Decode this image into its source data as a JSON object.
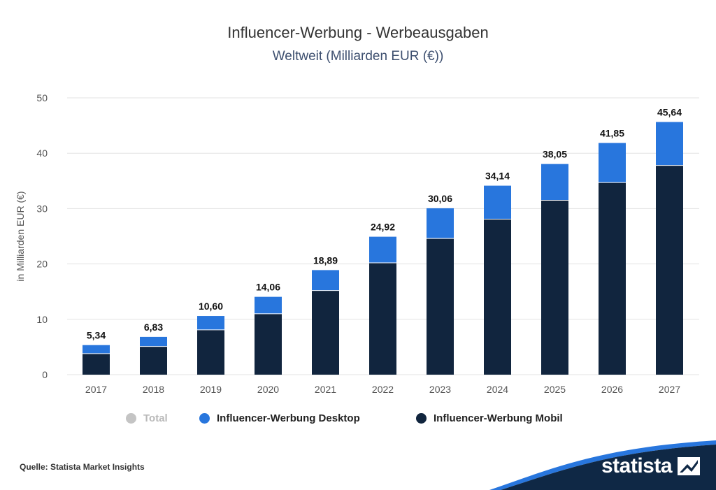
{
  "header": {
    "title": "Influencer-Werbung - Werbeausgaben",
    "subtitle": "Weltweit (Milliarden EUR (€))"
  },
  "legend": {
    "total": "Total",
    "desktop": "Influencer-Werbung Desktop",
    "mobil": "Influencer-Werbung Mobil"
  },
  "footer": {
    "source": "Quelle: Statista Market Insights",
    "logo_text": "statista"
  },
  "colors": {
    "mobil": "#11253e",
    "desktop": "#2876dd",
    "total": "#c4c4c4",
    "footer_band": "#0f2845",
    "footer_accent": "#2876dd",
    "grid": "#e3e3e3"
  },
  "chart_data": {
    "type": "bar",
    "stacked": true,
    "title": "Influencer-Werbung - Werbeausgaben",
    "subtitle": "Weltweit (Milliarden EUR (€))",
    "xlabel": "",
    "ylabel": "in Milliarden EUR (€)",
    "ylim": [
      0,
      50
    ],
    "yticks": [
      0,
      10,
      20,
      30,
      40,
      50
    ],
    "grid": true,
    "legend_position": "bottom",
    "categories": [
      "2017",
      "2018",
      "2019",
      "2020",
      "2021",
      "2022",
      "2023",
      "2024",
      "2025",
      "2026",
      "2027"
    ],
    "series": [
      {
        "name": "Influencer-Werbung Mobil",
        "values": [
          3.8,
          5.1,
          8.1,
          11.0,
          15.2,
          20.2,
          24.6,
          28.1,
          31.5,
          34.7,
          37.8
        ]
      },
      {
        "name": "Influencer-Werbung Desktop",
        "values": [
          1.54,
          1.73,
          2.5,
          3.06,
          3.69,
          4.72,
          5.46,
          6.04,
          6.55,
          7.15,
          7.84
        ]
      }
    ],
    "totals": [
      5.34,
      6.83,
      10.6,
      14.06,
      18.89,
      24.92,
      30.06,
      34.14,
      38.05,
      41.85,
      45.64
    ],
    "total_labels": [
      "5,34",
      "6,83",
      "10,60",
      "14,06",
      "18,89",
      "24,92",
      "30,06",
      "34,14",
      "38,05",
      "41,85",
      "45,64"
    ]
  }
}
